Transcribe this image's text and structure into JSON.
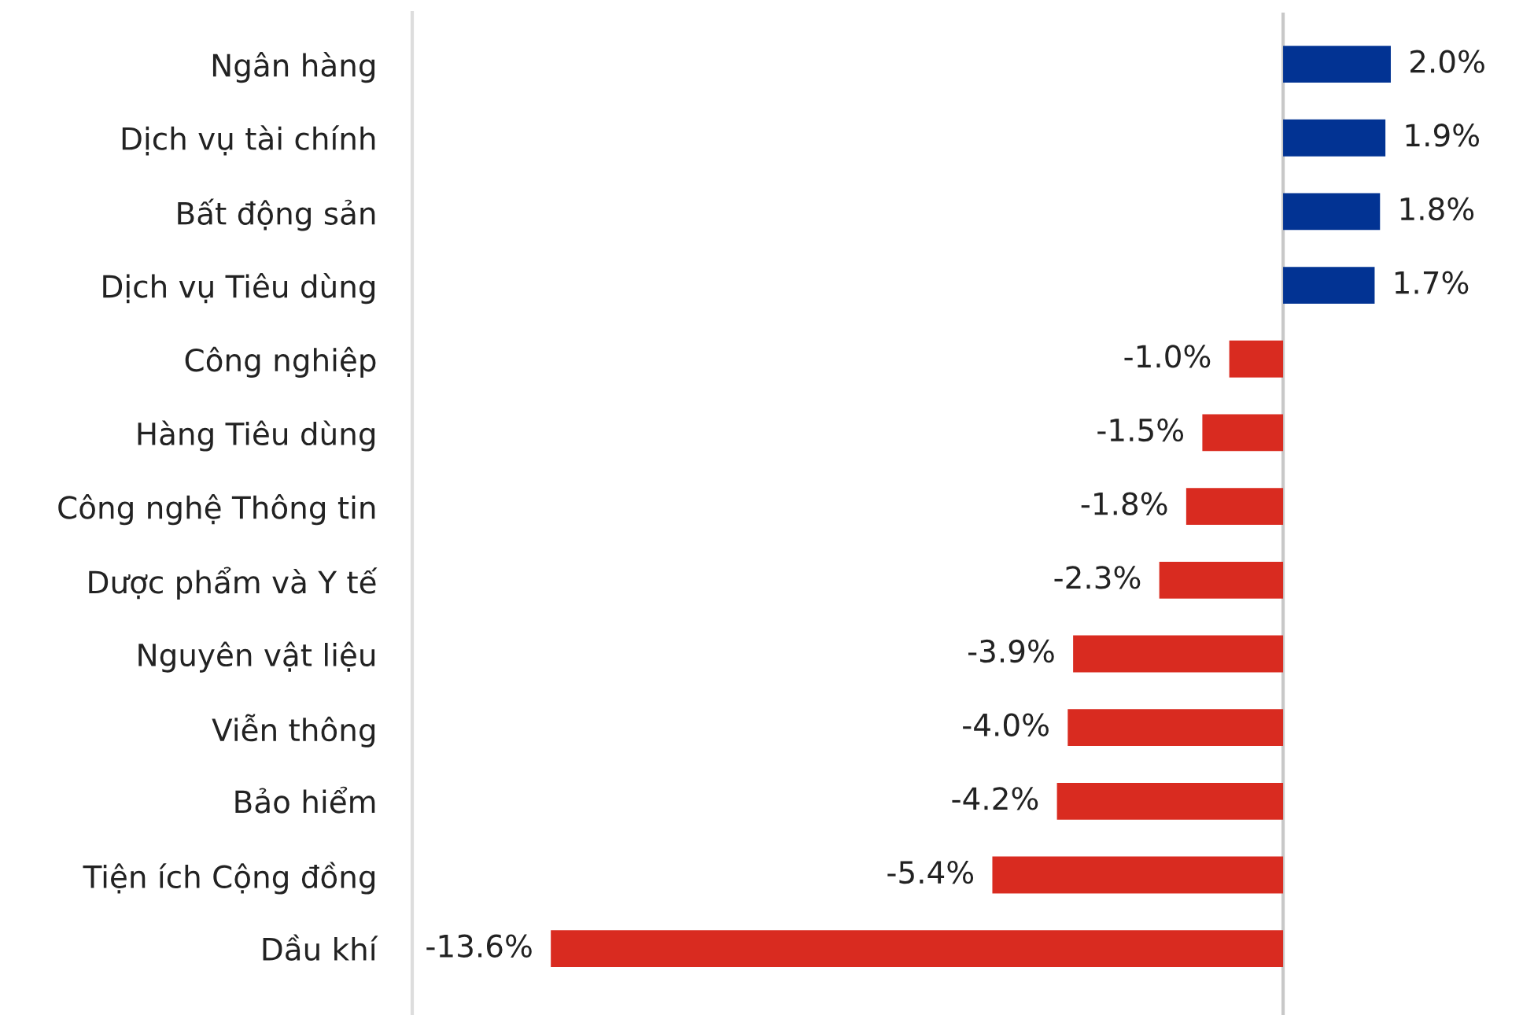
{
  "chart_data": {
    "type": "bar",
    "orientation": "horizontal",
    "categories": [
      "Ngân hàng",
      "Dịch vụ tài chính",
      "Bất động sản",
      "Dịch vụ Tiêu dùng",
      "Công nghiệp",
      "Hàng Tiêu dùng",
      "Công nghệ Thông tin",
      "Dược phẩm và Y tế",
      "Nguyên vật liệu",
      "Viễn thông",
      "Bảo hiểm",
      "Tiện ích Cộng đồng",
      "Dầu khí"
    ],
    "values": [
      2.0,
      1.9,
      1.8,
      1.7,
      -1.0,
      -1.5,
      -1.8,
      -2.3,
      -3.9,
      -4.0,
      -4.2,
      -5.4,
      -13.6
    ],
    "colors": [
      "#023393",
      "#023393",
      "#023393",
      "#023393",
      "#d92b20",
      "#d92b20",
      "#d92b20",
      "#d92b20",
      "#d92b20",
      "#d92b20",
      "#d92b20",
      "#d92b20",
      "#d92b20"
    ],
    "value_labels": [
      "2.0%",
      "1.9%",
      "1.8%",
      "1.7%",
      "-1.0%",
      "-1.5%",
      "-1.8%",
      "-2.3%",
      "-3.9%",
      "-4.0%",
      "-4.2%",
      "-5.4%",
      "-13.6%"
    ],
    "tick_labels": "y",
    "grid": false,
    "ref_lines": [
      {
        "axis": "x",
        "value": 0,
        "color": "#c8c8c8"
      }
    ]
  }
}
